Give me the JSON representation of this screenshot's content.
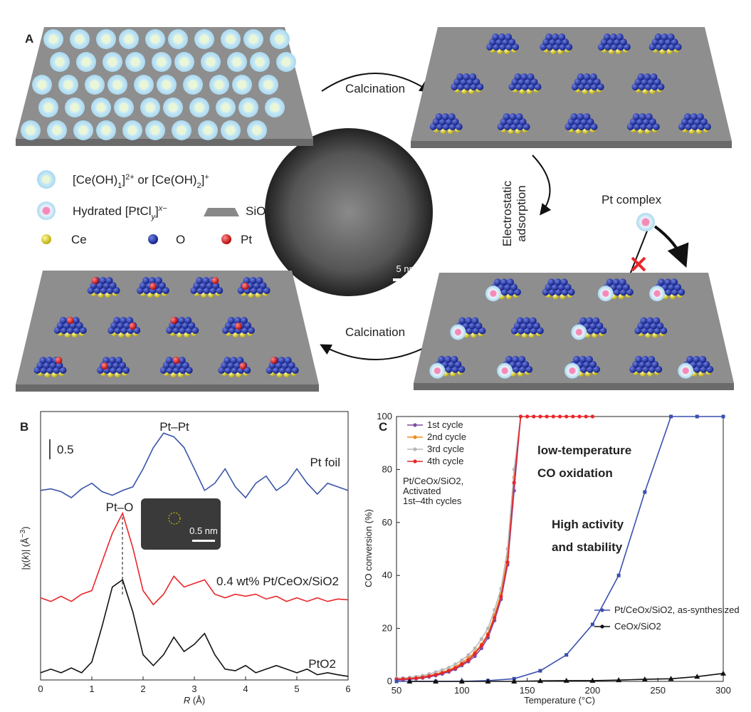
{
  "panel_a": {
    "label": "A",
    "arrow_top": "Calcination",
    "arrow_right": [
      "Electrostatic",
      "adsorption"
    ],
    "arrow_bottom": "Calcination",
    "pt_complex": "Pt complex",
    "scale_bar": "5 nm",
    "legend": {
      "ce_complex": [
        "[Ce(OH)",
        "1",
        "]",
        "2+",
        " or [Ce(OH)",
        "2",
        "]",
        "+"
      ],
      "pt_complex": [
        "Hydrated [PtCl",
        "y",
        "]",
        "x−"
      ],
      "sio2": [
        "SiO",
        "2"
      ],
      "ce": "Ce",
      "o": "O",
      "pt": "Pt"
    }
  },
  "chart_data": [
    {
      "type": "line",
      "panel_label": "B",
      "x_label": [
        "R",
        " (Å)"
      ],
      "y_label": [
        "|χ(",
        "k",
        ")| (Å",
        "−3",
        ")"
      ],
      "xlim": [
        0,
        6
      ],
      "xticks": [
        0,
        1,
        2,
        3,
        4,
        5,
        6
      ],
      "ylim": [
        0,
        6.7
      ],
      "scale_bar": 0.5,
      "x": [
        0,
        0.2,
        0.4,
        0.6,
        0.8,
        1.0,
        1.2,
        1.4,
        1.6,
        1.8,
        2.0,
        2.2,
        2.4,
        2.6,
        2.8,
        3.0,
        3.2,
        3.4,
        3.6,
        3.8,
        4.0,
        4.2,
        4.4,
        4.6,
        4.8,
        5.0,
        5.2,
        5.4,
        5.6,
        5.8,
        6.0
      ],
      "series": [
        {
          "name": "Pt foil",
          "color": "#3a55a8",
          "values": [
            4.73,
            4.77,
            4.7,
            4.55,
            4.77,
            4.91,
            4.7,
            4.61,
            4.73,
            4.82,
            5.27,
            5.8,
            6.16,
            6.07,
            5.8,
            5.27,
            4.73,
            4.91,
            5.27,
            4.82,
            4.55,
            4.91,
            5.09,
            4.73,
            4.91,
            5.27,
            4.91,
            4.64,
            4.91,
            4.82,
            4.73
          ]
        },
        {
          "name": "0.4 wt% Pt/CeOx/SiO2",
          "color": "#e8262a",
          "values": [
            2.05,
            1.96,
            2.09,
            1.96,
            2.14,
            2.23,
            2.95,
            3.66,
            4.16,
            3.3,
            2.23,
            1.88,
            2.14,
            2.59,
            2.32,
            2.41,
            2.5,
            2.14,
            2.05,
            2.14,
            2.09,
            2.14,
            2.02,
            2.09,
            1.96,
            2.05,
            1.96,
            2.05,
            1.96,
            2.02,
            2.0
          ]
        },
        {
          "name": "PtO2",
          "color": "#111111",
          "values": [
            0.18,
            0.27,
            0.18,
            0.3,
            0.18,
            0.45,
            1.34,
            2.32,
            2.5,
            1.7,
            0.63,
            0.36,
            0.63,
            1.07,
            0.71,
            0.89,
            1.16,
            0.63,
            0.27,
            0.23,
            0.36,
            0.18,
            0.27,
            0.36,
            0.27,
            0.18,
            0.27,
            0.13,
            0.18,
            0.13,
            0.09
          ]
        }
      ],
      "annotations": {
        "pt_pt": "Pt–Pt",
        "pt_o": "Pt–O",
        "inset_scale": "0.5 nm"
      }
    },
    {
      "type": "line",
      "panel_label": "C",
      "x_label": "Temperature (°C)",
      "y_label": "CO conversion (%)",
      "xlim": [
        50,
        300
      ],
      "xticks": [
        50,
        100,
        150,
        200,
        250,
        300
      ],
      "ylim": [
        0,
        100
      ],
      "yticks": [
        0,
        20,
        40,
        60,
        80,
        100
      ],
      "series": [
        {
          "name": "1st cycle",
          "color": "#7b4fa0",
          "marker": "circle",
          "x": [
            50,
            55,
            60,
            65,
            70,
            75,
            80,
            85,
            90,
            95,
            100,
            105,
            110,
            115,
            120,
            125,
            130,
            135,
            140,
            145
          ],
          "values": [
            0.5,
            0.6,
            0.8,
            1,
            1.3,
            1.7,
            2.2,
            2.8,
            3.6,
            4.6,
            6,
            7.5,
            9.5,
            12.5,
            16.5,
            23,
            31,
            44,
            72,
            100
          ]
        },
        {
          "name": "2nd cycle",
          "color": "#f28a1e",
          "marker": "circle",
          "x": [
            50,
            55,
            60,
            65,
            70,
            75,
            80,
            85,
            90,
            95,
            100,
            105,
            110,
            115,
            120,
            125,
            130,
            135,
            140,
            145
          ],
          "values": [
            1,
            1,
            1.2,
            1.4,
            1.7,
            2.2,
            2.8,
            3.5,
            4.3,
            5.5,
            7,
            8.8,
            11,
            14,
            18,
            25,
            33,
            47,
            77,
            100
          ]
        },
        {
          "name": "3rd cycle",
          "color": "#b8b8b8",
          "marker": "circle",
          "x": [
            50,
            55,
            60,
            65,
            70,
            75,
            80,
            85,
            90,
            95,
            100,
            105,
            110,
            115,
            120,
            125,
            130,
            135,
            140,
            145
          ],
          "values": [
            1.2,
            1.3,
            1.5,
            1.8,
            2.2,
            2.8,
            3.5,
            4.3,
            5.2,
            6.5,
            8,
            10,
            12.5,
            16,
            20,
            27,
            35,
            50,
            80,
            100
          ]
        },
        {
          "name": "4th cycle",
          "color": "#e8262a",
          "marker": "circle",
          "x": [
            50,
            55,
            60,
            65,
            70,
            75,
            80,
            85,
            90,
            95,
            100,
            105,
            110,
            115,
            120,
            125,
            130,
            135,
            140,
            145,
            150,
            155,
            160,
            165,
            170,
            175,
            180,
            185,
            190,
            195,
            200
          ],
          "values": [
            0.8,
            0.9,
            1,
            1.2,
            1.5,
            2,
            2.5,
            3.2,
            4,
            5,
            6.5,
            8,
            10.5,
            13.5,
            17.5,
            24,
            32,
            45,
            75,
            100,
            100,
            100,
            100,
            100,
            100,
            100,
            100,
            100,
            100,
            100,
            100
          ]
        },
        {
          "name": "Pt/CeOx/SiO2, as-synthesized",
          "color": "#3a4fb0",
          "marker": "square",
          "x": [
            50,
            60,
            80,
            100,
            120,
            140,
            160,
            180,
            200,
            220,
            240,
            260,
            280,
            300
          ],
          "values": [
            0,
            0,
            0,
            0,
            0.3,
            1,
            4,
            10,
            21.5,
            40,
            71.5,
            100,
            100,
            100
          ]
        },
        {
          "name": "CeOx/SiO2",
          "color": "#111111",
          "marker": "triangle",
          "x": [
            60,
            80,
            100,
            120,
            140,
            160,
            180,
            200,
            220,
            240,
            260,
            280,
            300
          ],
          "values": [
            0,
            0,
            0,
            0,
            0,
            0.2,
            0.3,
            0.3,
            0.5,
            0.8,
            1,
            1.8,
            3
          ]
        }
      ],
      "annotations": {
        "title": [
          "low-temperature",
          "CO oxidation"
        ],
        "subtitle": [
          "High activity",
          "and stability"
        ],
        "note": [
          "Pt/CeOx/SiO2,",
          "Activated",
          "1st–4th cycles"
        ]
      }
    }
  ]
}
